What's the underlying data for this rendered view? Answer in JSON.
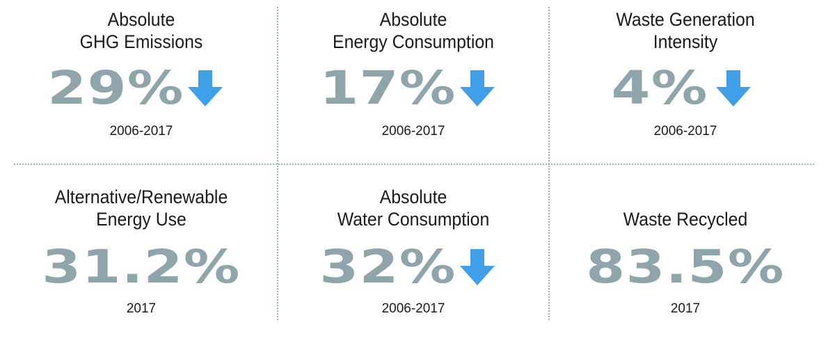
{
  "metrics": [
    {
      "label_line1": "Absolute",
      "label_line2": "GHG Emissions",
      "value": "29%",
      "trend_icon": "down-arrow-icon",
      "period": "2006-2017"
    },
    {
      "label_line1": "Absolute",
      "label_line2": "Energy Consumption",
      "value": "17%",
      "trend_icon": "down-arrow-icon",
      "period": "2006-2017"
    },
    {
      "label_line1": "Waste Generation",
      "label_line2": "Intensity",
      "value": "4%",
      "trend_icon": "down-arrow-icon",
      "period": "2006-2017"
    },
    {
      "label_line1": "Alternative/Renewable",
      "label_line2": "Energy Use",
      "value": "31.2%",
      "trend_icon": "",
      "period": "2017"
    },
    {
      "label_line1": "Absolute",
      "label_line2": "Water Consumption",
      "value": "32%",
      "trend_icon": "down-arrow-icon",
      "period": "2006-2017"
    },
    {
      "label_line1": "",
      "label_line2": "Waste Recycled",
      "value": "83.5%",
      "trend_icon": "",
      "period": "2017"
    }
  ],
  "colors": {
    "value": "#8fa5ab",
    "arrow": "#3f9fe8",
    "divider": "#8fb3b8",
    "text": "#1a1a1a"
  }
}
